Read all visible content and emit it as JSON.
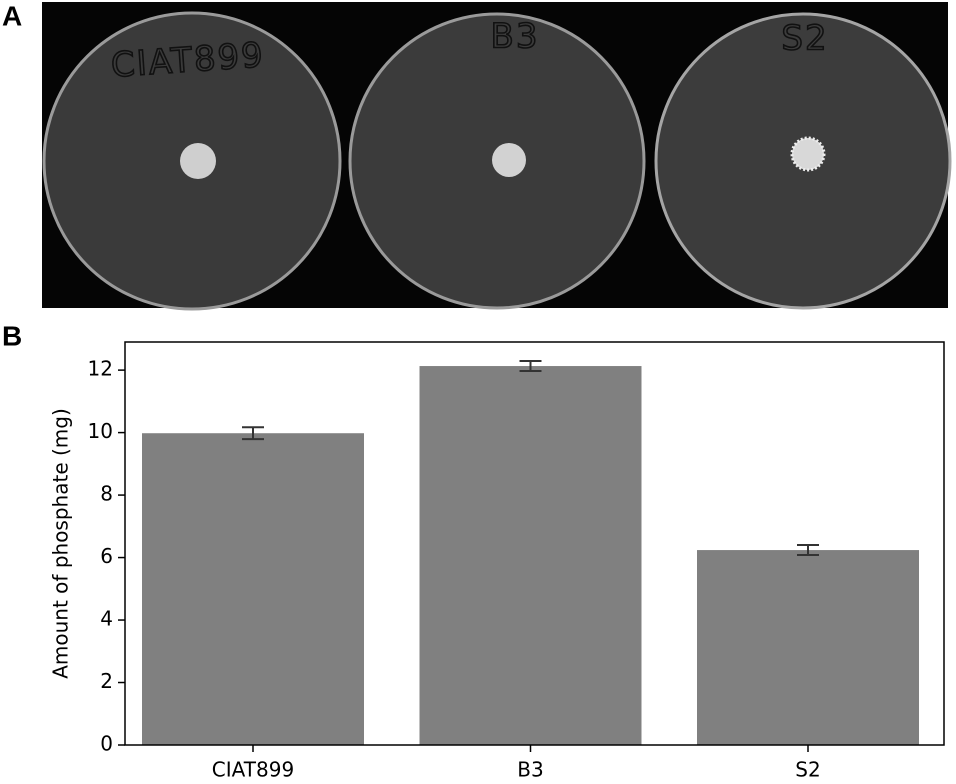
{
  "panel_a": {
    "label": "A",
    "plate_labels": [
      "CIAT899",
      "B3",
      "S2"
    ]
  },
  "panel_b": {
    "label": "B"
  },
  "chart_data": {
    "type": "bar",
    "y_label": "Amount of phosphate (mg)",
    "categories": [
      "CIAT899",
      "B3",
      "S2"
    ],
    "values": [
      9.98,
      12.13,
      6.24
    ],
    "errors": [
      0.19,
      0.16,
      0.16
    ],
    "color": "#808080",
    "error_color": "#333333",
    "ylim": [
      0,
      12.9
    ],
    "yticks": [
      0,
      2,
      4,
      6,
      8,
      10,
      12
    ]
  }
}
